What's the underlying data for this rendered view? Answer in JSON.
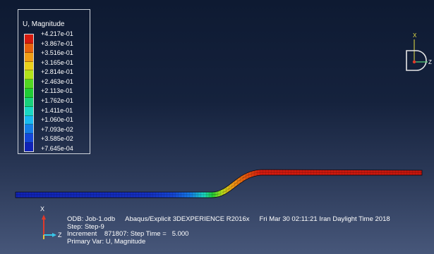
{
  "legend": {
    "title": "U, Magnitude",
    "labels": [
      "+4.217e-01",
      "+3.867e-01",
      "+3.516e-01",
      "+3.165e-01",
      "+2.814e-01",
      "+2.463e-01",
      "+2.113e-01",
      "+1.762e-01",
      "+1.411e-01",
      "+1.060e-01",
      "+7.093e-02",
      "+3.585e-02",
      "+7.645e-04"
    ],
    "colors": [
      "#d71b0f",
      "#e8620d",
      "#f19e16",
      "#ead01b",
      "#b2e31a",
      "#52d822",
      "#20cd35",
      "#18d27b",
      "#1ad8c4",
      "#1abbf2",
      "#157fe8",
      "#1547d8",
      "#1022b6"
    ]
  },
  "colors": {
    "background_top": "#0e1a32",
    "background_bottom": "#47577a",
    "text": "#ffffff"
  },
  "triad": {
    "top_right": {
      "x_label": "X",
      "z_label": "Z"
    },
    "bottom_left": {
      "x_label": "X",
      "z_label": "Z"
    }
  },
  "info": {
    "odb": "ODB: Job-1.odb",
    "solver": "Abaqus/Explicit 3DEXPERIENCE R2016x",
    "timestamp": "Fri Mar 30 02:11:21 Iran Daylight Time 2018",
    "step": "Step: Step-9",
    "increment_label": "Increment",
    "increment_value": "871807:",
    "step_time": "Step Time =",
    "step_time_value": "5.000",
    "primary_var": "Primary Var: U, Magnitude"
  }
}
